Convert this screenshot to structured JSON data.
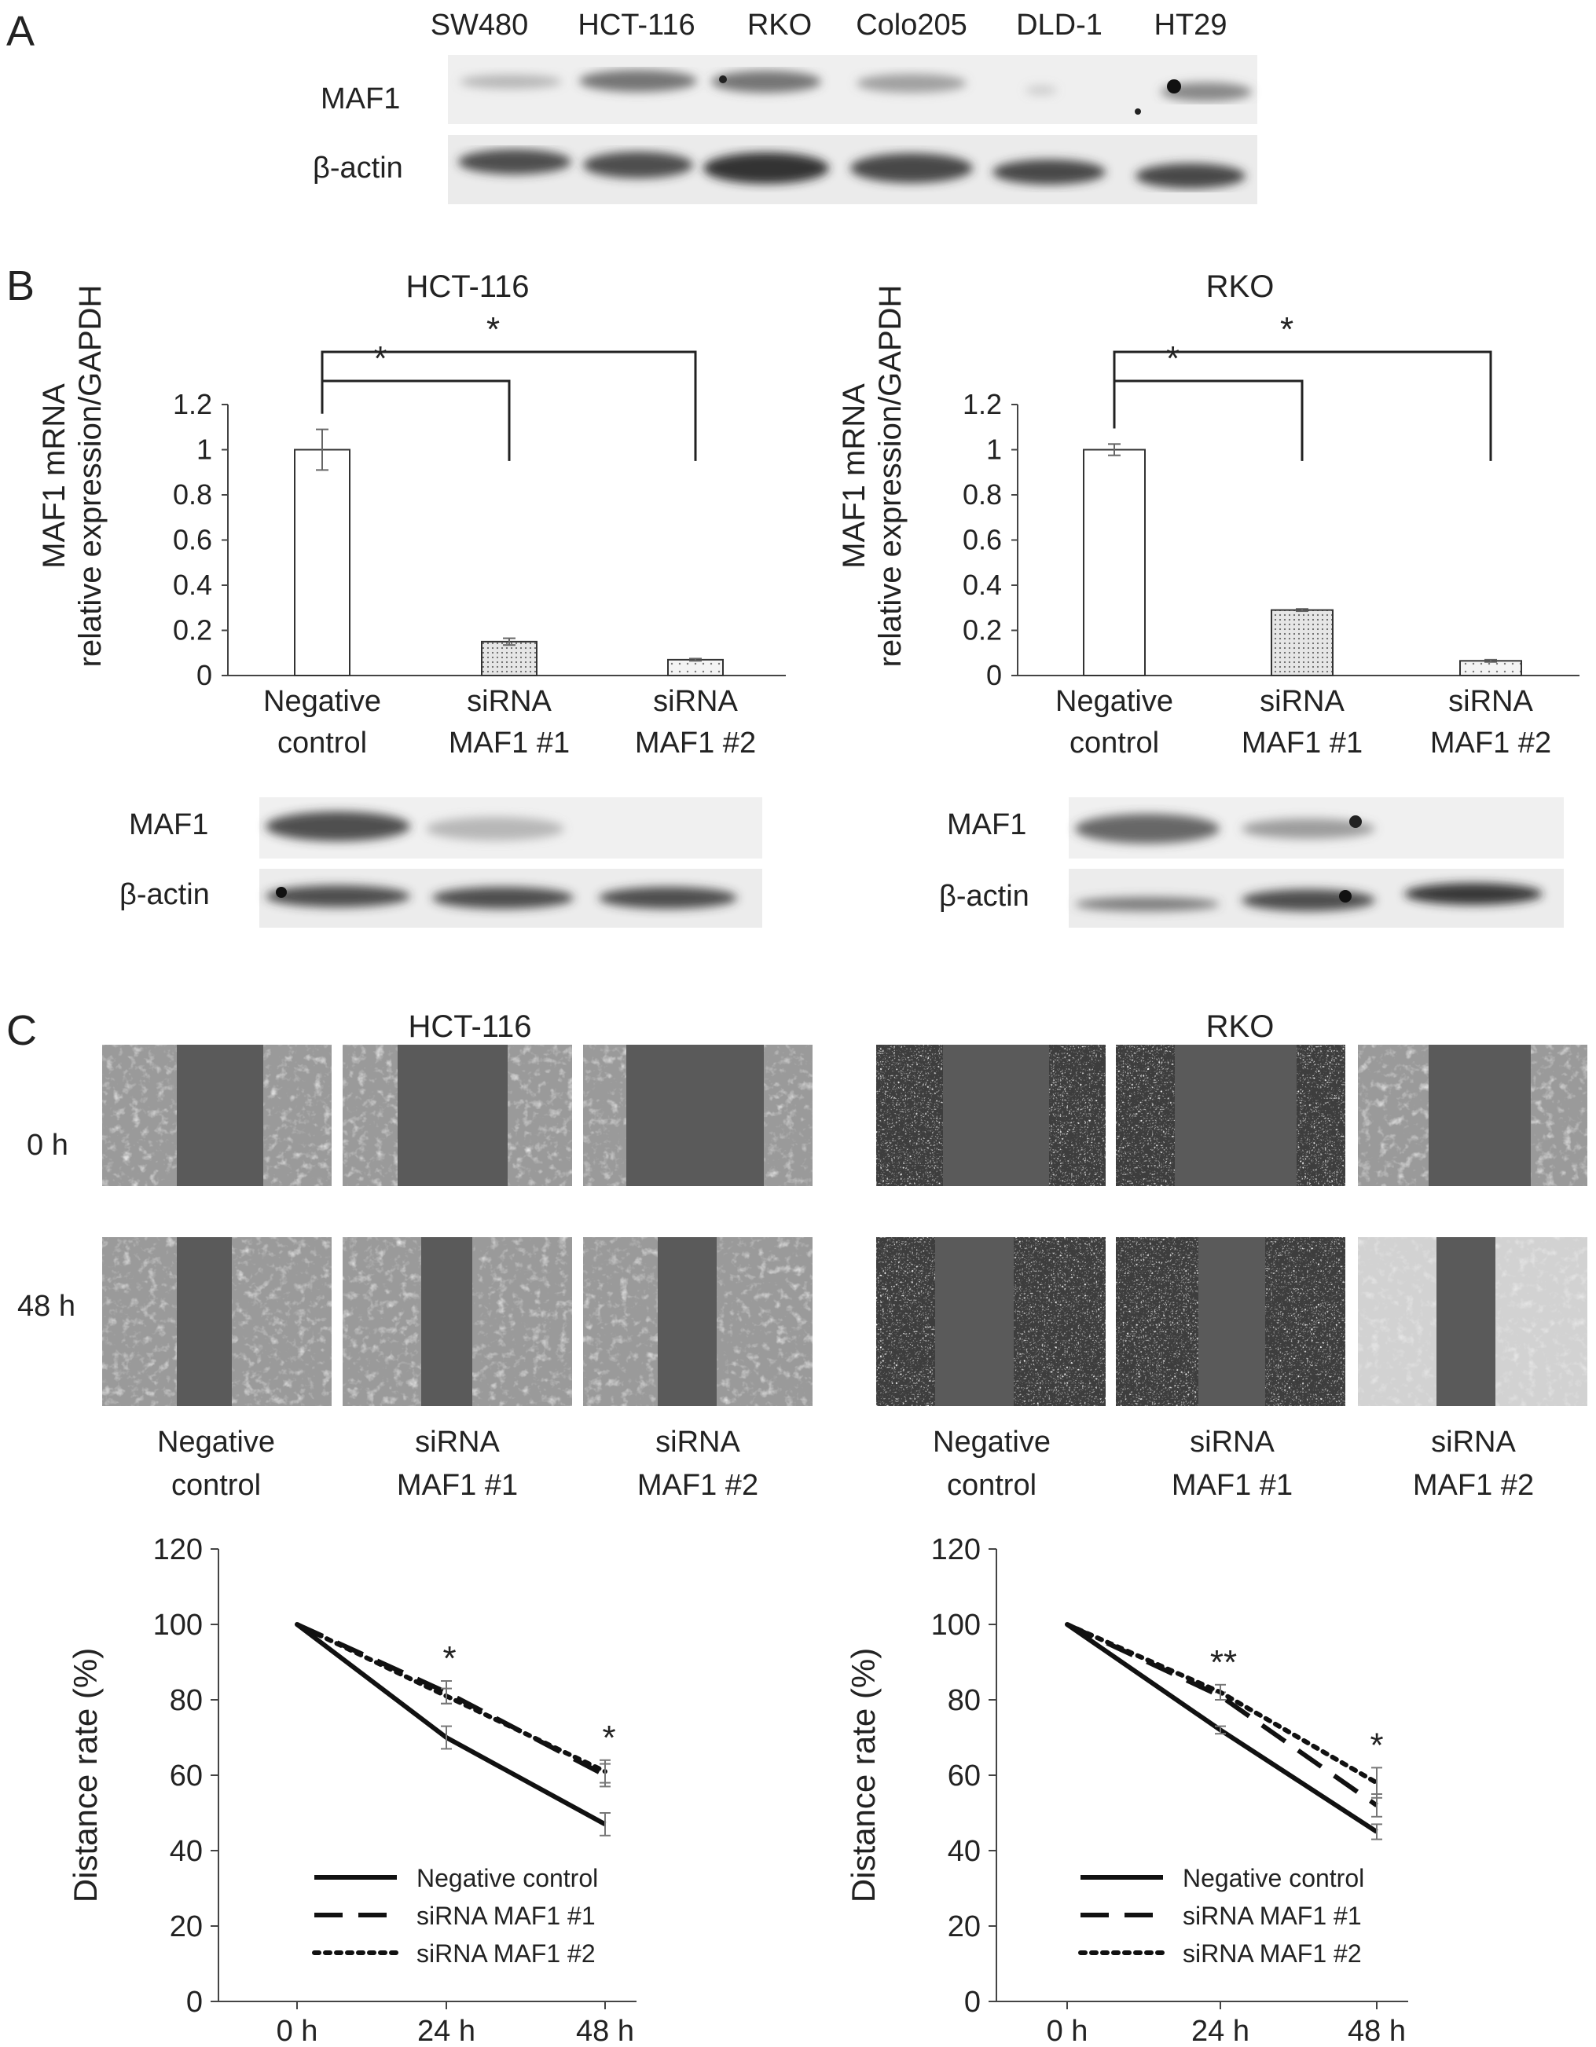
{
  "panels": {
    "a": "A",
    "b": "B",
    "c": "C"
  },
  "panel_a": {
    "lanes": [
      "SW480",
      "HCT-116",
      "RKO",
      "Colo205",
      "DLD-1",
      "HT29"
    ],
    "rows": [
      "MAF1",
      "β-actin"
    ]
  },
  "panel_b": {
    "hct_title": "HCT-116",
    "rko_title": "RKO",
    "ylabel_line1": "MAF1 mRNA",
    "ylabel_line2": "relative expression/GAPDH",
    "blot_rows": [
      "MAF1",
      "β-actin"
    ],
    "star": "*"
  },
  "panel_c": {
    "hct_title": "HCT-116",
    "rko_title": "RKO",
    "time_rows": [
      "0 h",
      "48 h"
    ],
    "conditions": [
      {
        "line1": "Negative",
        "line2": "control"
      },
      {
        "line1": "siRNA",
        "line2": "MAF1 #1"
      },
      {
        "line1": "siRNA",
        "line2": "MAF1 #2"
      }
    ]
  },
  "chart_data": [
    {
      "type": "bar",
      "title": "HCT-116",
      "ylabel": "MAF1 mRNA relative expression/GAPDH",
      "categories": [
        "Negative control",
        "siRNA MAF1 #1",
        "siRNA MAF1 #2"
      ],
      "values": [
        1.0,
        0.15,
        0.07
      ],
      "errors": [
        0.09,
        0.015,
        0.005
      ],
      "ylim": [
        0,
        1.2
      ],
      "yticks": [
        0,
        0.2,
        0.4,
        0.6,
        0.8,
        1,
        1.2
      ],
      "significance": [
        "*",
        "*"
      ],
      "fills": [
        "#ffffff",
        "#d8d8d8",
        "#ececec"
      ]
    },
    {
      "type": "bar",
      "title": "RKO",
      "ylabel": "MAF1 mRNA relative expression/GAPDH",
      "categories": [
        "Negative control",
        "siRNA MAF1 #1",
        "siRNA MAF1 #2"
      ],
      "values": [
        1.0,
        0.29,
        0.065
      ],
      "errors": [
        0.025,
        0.005,
        0.005
      ],
      "ylim": [
        0,
        1.2
      ],
      "yticks": [
        0,
        0.2,
        0.4,
        0.6,
        0.8,
        1,
        1.2
      ],
      "significance": [
        "*",
        "*"
      ],
      "fills": [
        "#ffffff",
        "#d8d8d8",
        "#ececec"
      ]
    },
    {
      "type": "line",
      "title": "HCT-116",
      "ylabel": "Distance rate (%)",
      "x": [
        "0 h",
        "24 h",
        "48 h"
      ],
      "ylim": [
        0,
        120
      ],
      "yticks": [
        0,
        20,
        40,
        60,
        80,
        100,
        120
      ],
      "series": [
        {
          "name": "Negative control",
          "values": [
            100,
            70,
            47
          ],
          "errors": [
            0,
            3,
            3
          ],
          "dash": "solid"
        },
        {
          "name": "siRNA MAF1 #1",
          "values": [
            100,
            82,
            60
          ],
          "errors": [
            0,
            3,
            3
          ],
          "dash": "dashed"
        },
        {
          "name": "siRNA MAF1 #2",
          "values": [
            100,
            81,
            61
          ],
          "errors": [
            0,
            2,
            3
          ],
          "dash": "dotted"
        }
      ],
      "annotations": [
        {
          "x": "24 h",
          "text": "*"
        },
        {
          "x": "48 h",
          "text": "*"
        }
      ]
    },
    {
      "type": "line",
      "title": "RKO",
      "ylabel": "Distance rate (%)",
      "x": [
        "0 h",
        "24 h",
        "48 h"
      ],
      "ylim": [
        0,
        120
      ],
      "yticks": [
        0,
        20,
        40,
        60,
        80,
        100,
        120
      ],
      "series": [
        {
          "name": "Negative control",
          "values": [
            100,
            72,
            45
          ],
          "errors": [
            0,
            1,
            2
          ],
          "dash": "solid"
        },
        {
          "name": "siRNA MAF1 #1",
          "values": [
            100,
            81,
            52
          ],
          "errors": [
            0,
            1,
            3
          ],
          "dash": "dashed"
        },
        {
          "name": "siRNA MAF1 #2",
          "values": [
            100,
            82,
            58
          ],
          "errors": [
            0,
            2,
            4
          ],
          "dash": "dotted"
        }
      ],
      "annotations": [
        {
          "x": "24 h",
          "text": "**"
        },
        {
          "x": "48 h",
          "text": "*"
        }
      ]
    }
  ]
}
